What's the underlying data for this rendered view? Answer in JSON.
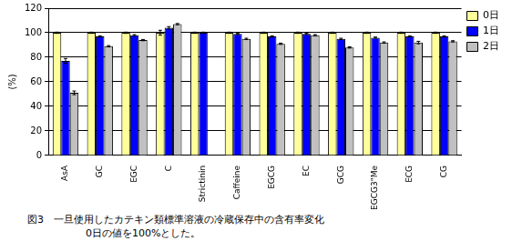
{
  "chart_data": {
    "type": "bar",
    "title": "図3　一旦使用したカテキン類標準溶液の冷蔵保存中の含有率変化",
    "subtitle": "0日の値を100%とした。",
    "y_label": "(%)",
    "categories": [
      "AsA",
      "GC",
      "EGC",
      "C",
      "Strictinin",
      "Caffeine",
      "EGCG",
      "EC",
      "GCG",
      "EGCG3\"Me",
      "ECG",
      "CG"
    ],
    "series": [
      {
        "name": "0日",
        "color": "#ffff99",
        "values": [
          100,
          100,
          100,
          100,
          100,
          100,
          100,
          100,
          100,
          100,
          100,
          100
        ],
        "errors": [
          0.5,
          0.5,
          0.5,
          2,
          0.5,
          0.5,
          0.5,
          0.5,
          0.5,
          0.5,
          0.5,
          0.5
        ]
      },
      {
        "name": "1日",
        "color": "#0000ff",
        "values": [
          77,
          97,
          98,
          104,
          100,
          99,
          97,
          99,
          95,
          96,
          97,
          97
        ],
        "errors": [
          2,
          0.5,
          0.5,
          1,
          0.5,
          0.5,
          0.5,
          0.5,
          0.5,
          0.5,
          0.5,
          0.5
        ]
      },
      {
        "name": "2日",
        "color": "#c0c0c0",
        "values": [
          51,
          89,
          94,
          107,
          null,
          95,
          91,
          98,
          88,
          92,
          92,
          93
        ],
        "errors": [
          1.5,
          0.5,
          0.5,
          0.5,
          null,
          0.5,
          0.5,
          0.5,
          0.5,
          0.5,
          1,
          0.5
        ]
      }
    ],
    "ylim": [
      0,
      120
    ],
    "yticks": [
      0,
      20,
      40,
      60,
      80,
      100,
      120
    ],
    "grid": true,
    "legend": "top-right"
  }
}
